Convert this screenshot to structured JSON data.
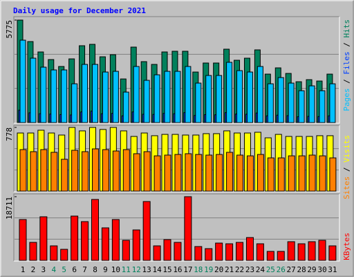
{
  "chart_data": [
    {
      "type": "bar",
      "title": "Daily usage for December 2021",
      "legend_separator": " / ",
      "ylim": [
        0,
        5775
      ],
      "yticks": [
        5775
      ],
      "series": [
        {
          "name": "Pages",
          "color": "#00c0ff",
          "values": [
            4643,
            3629,
            3122,
            2966,
            2966,
            2185,
            3278,
            3278,
            2848,
            2887,
            1717,
            3161,
            2380,
            2692,
            2887,
            2887,
            3161,
            2224,
            2653,
            2653,
            3395,
            2927,
            2848,
            3161,
            2185,
            2536,
            2224,
            1795,
            2068,
            1795,
            2185
          ]
        },
        {
          "name": "Files",
          "color": "#0040ff",
          "values": [
            700,
            550,
            500,
            480,
            450,
            430,
            600,
            650,
            500,
            520,
            380,
            600,
            470,
            460,
            520,
            500,
            560,
            400,
            450,
            440,
            560,
            480,
            470,
            540,
            380,
            420,
            390,
            330,
            350,
            340,
            380
          ]
        },
        {
          "name": "Hits",
          "color": "#00805c",
          "values": [
            5775,
            4565,
            3980,
            3551,
            3161,
            3590,
            4331,
            4409,
            3707,
            3824,
            2458,
            4253,
            3434,
            3278,
            3980,
            4019,
            4019,
            2848,
            3356,
            3356,
            4136,
            3512,
            3629,
            4097,
            2731,
            3083,
            2770,
            2302,
            2419,
            2341,
            2731
          ]
        }
      ]
    },
    {
      "type": "bar",
      "legend_separator": " / ",
      "ylim": [
        0,
        778
      ],
      "yticks": [
        778
      ],
      "series": [
        {
          "name": "Sites",
          "color": "#ff8000",
          "values": [
            507,
            482,
            507,
            474,
            389,
            499,
            482,
            516,
            507,
            490,
            507,
            457,
            482,
            431,
            440,
            448,
            457,
            448,
            440,
            448,
            474,
            440,
            431,
            448,
            406,
            406,
            431,
            431,
            440,
            431,
            406
          ]
        },
        {
          "name": "Visits",
          "color": "#ffff00",
          "values": [
            710,
            710,
            744,
            710,
            685,
            778,
            736,
            778,
            753,
            778,
            736,
            668,
            710,
            677,
            693,
            693,
            685,
            685,
            702,
            702,
            736,
            710,
            710,
            719,
            651,
            693,
            668,
            668,
            668,
            677,
            677
          ]
        }
      ]
    },
    {
      "type": "bar",
      "ylim": [
        0,
        18711
      ],
      "yticks": [
        18711
      ],
      "categories": [
        "1",
        "2",
        "3",
        "4",
        "5",
        "6",
        "7",
        "8",
        "9",
        "10",
        "11",
        "12",
        "13",
        "14",
        "15",
        "16",
        "17",
        "18",
        "19",
        "20",
        "21",
        "22",
        "23",
        "24",
        "25",
        "26",
        "27",
        "28",
        "29",
        "30",
        "31"
      ],
      "category_colors": [
        "#000000",
        "#000000",
        "#000000",
        "#00805c",
        "#00805c",
        "#000000",
        "#000000",
        "#000000",
        "#000000",
        "#000000",
        "#00805c",
        "#00805c",
        "#000000",
        "#000000",
        "#000000",
        "#000000",
        "#000000",
        "#00805c",
        "#00805c",
        "#000000",
        "#000000",
        "#000000",
        "#000000",
        "#000000",
        "#00805c",
        "#00805c",
        "#000000",
        "#000000",
        "#000000",
        "#000000",
        "#000000"
      ],
      "series": [
        {
          "name": "KBytes",
          "color": "#ff0000",
          "values": [
            12000,
            5288,
            12813,
            4271,
            3254,
            13016,
            11389,
            17897,
            9559,
            12000,
            5898,
            8949,
            17287,
            4271,
            6101,
            5288,
            18711,
            4068,
            3457,
            5085,
            4881,
            5288,
            6712,
            4881,
            2644,
            2644,
            5491,
            4881,
            5491,
            5898,
            4271
          ]
        }
      ]
    }
  ]
}
